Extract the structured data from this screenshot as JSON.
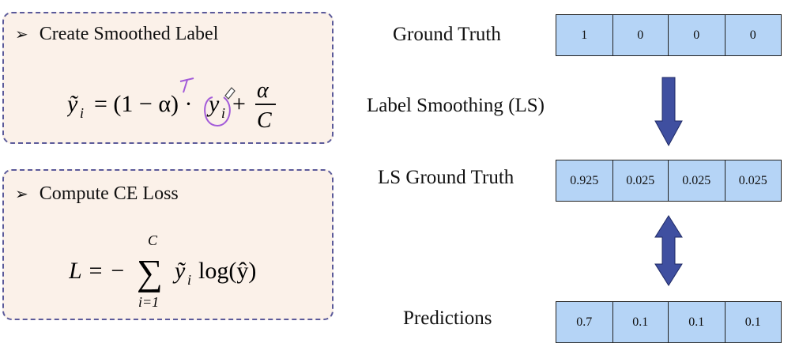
{
  "colors": {
    "box_bg": "#fbf1e9",
    "box_border": "#5b5a9a",
    "cell_bg": "#b5d4f6",
    "arrow": "#3f4fa0",
    "annotation": "#a35bd9"
  },
  "left": {
    "smooth_box": {
      "bullet_icon": "➢",
      "title": "Create Smoothed Label",
      "formula": {
        "lhs": "ỹ",
        "lhs_sub": "i",
        "eq": "= (1 − α) ·",
        "y": "y",
        "y_sub": "i",
        "plus": "+",
        "num": "α",
        "den": "C"
      }
    },
    "ce_box": {
      "bullet_icon": "➢",
      "title": "Compute CE Loss",
      "formula": {
        "lhs": "L = −",
        "sum_top": "C",
        "sum": "∑",
        "sum_bottom": "i=1",
        "term": "ỹ",
        "term_sub": "i",
        "log": "log(ŷ)"
      }
    }
  },
  "right": {
    "ground_truth": {
      "label": "Ground Truth",
      "values": [
        "1",
        "0",
        "0",
        "0"
      ]
    },
    "ls_label": "Label Smoothing (LS)",
    "ls_ground_truth": {
      "label": "LS Ground Truth",
      "values": [
        "0.925",
        "0.025",
        "0.025",
        "0.025"
      ]
    },
    "predictions": {
      "label": "Predictions",
      "values": [
        "0.7",
        "0.1",
        "0.1",
        "0.1"
      ]
    }
  }
}
